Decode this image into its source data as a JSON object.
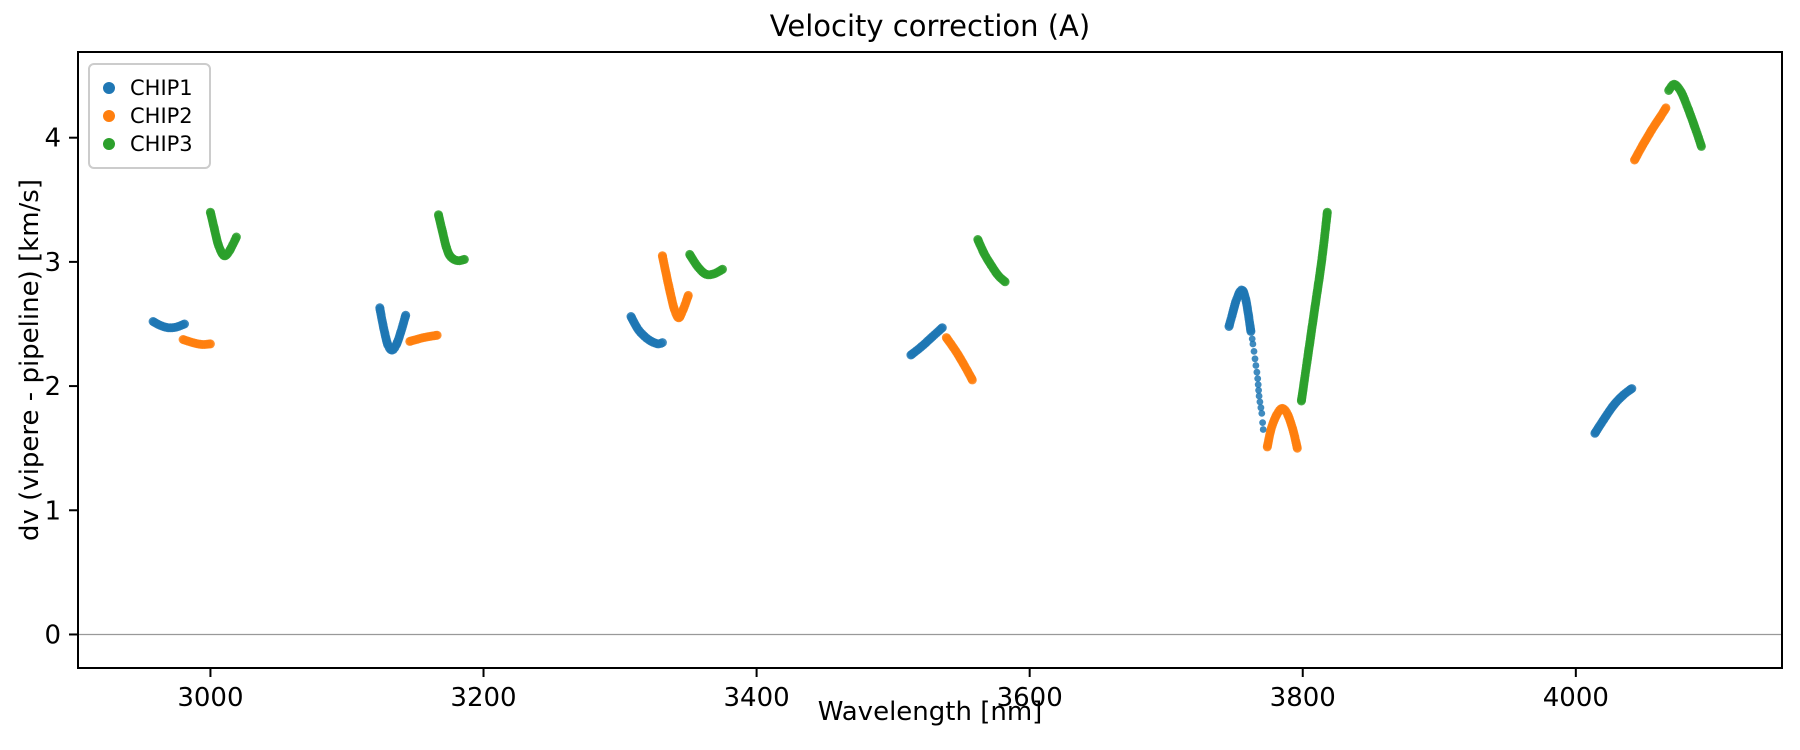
{
  "chart_data": {
    "type": "scatter",
    "title": "Velocity correction (A)",
    "xlabel": "Wavelength [nm]",
    "ylabel": "dv (vipere - pipeline) [km/s]",
    "xlim": [
      2903,
      4151
    ],
    "ylim": [
      -0.27,
      4.69
    ],
    "xticks": [
      3000,
      3200,
      3400,
      3600,
      3800,
      4000
    ],
    "yticks": [
      0,
      1,
      2,
      3,
      4
    ],
    "grid": false,
    "zero_line": {
      "y": 0,
      "color": "#999999"
    },
    "legend": {
      "position": "upper left",
      "entries": [
        "CHIP1",
        "CHIP2",
        "CHIP3"
      ]
    },
    "series": [
      {
        "name": "CHIP1",
        "color": "#1f77b4",
        "segments": [
          {
            "points": [
              [
                2958,
                2.52
              ],
              [
                2963,
                2.49
              ],
              [
                2969,
                2.47
              ],
              [
                2975,
                2.475
              ],
              [
                2981,
                2.5
              ]
            ]
          },
          {
            "points": [
              [
                3124,
                2.63
              ],
              [
                3127,
                2.46
              ],
              [
                3130,
                2.33
              ],
              [
                3133,
                2.29
              ],
              [
                3136,
                2.33
              ],
              [
                3139,
                2.42
              ],
              [
                3143,
                2.57
              ]
            ]
          },
          {
            "points": [
              [
                3308,
                2.56
              ],
              [
                3313,
                2.46
              ],
              [
                3318,
                2.4
              ],
              [
                3323,
                2.36
              ],
              [
                3328,
                2.34
              ],
              [
                3331,
                2.35
              ]
            ]
          },
          {
            "points": [
              [
                3513,
                2.25
              ],
              [
                3521,
                2.32
              ],
              [
                3529,
                2.4
              ],
              [
                3536,
                2.47
              ]
            ]
          },
          {
            "points": [
              [
                3746,
                2.48
              ],
              [
                3748,
                2.56
              ],
              [
                3751,
                2.68
              ],
              [
                3754,
                2.76
              ],
              [
                3756,
                2.77
              ],
              [
                3758,
                2.71
              ],
              [
                3760,
                2.59
              ],
              [
                3762,
                2.44
              ]
            ]
          },
          {
            "points": [
              [
                3763,
                2.38
              ],
              [
                3765,
                2.22
              ],
              [
                3767,
                2.06
              ],
              [
                3768,
                1.92
              ],
              [
                3770,
                1.78
              ],
              [
                3771,
                1.65
              ]
            ],
            "sparse": true
          },
          {
            "points": [
              [
                4014,
                1.62
              ],
              [
                4021,
                1.74
              ],
              [
                4028,
                1.85
              ],
              [
                4035,
                1.93
              ],
              [
                4041,
                1.98
              ]
            ]
          }
        ]
      },
      {
        "name": "CHIP2",
        "color": "#ff7f0e",
        "segments": [
          {
            "points": [
              [
                2980,
                2.375
              ],
              [
                2987,
                2.35
              ],
              [
                2994,
                2.335
              ],
              [
                3000,
                2.34
              ]
            ]
          },
          {
            "points": [
              [
                3146,
                2.36
              ],
              [
                3156,
                2.39
              ],
              [
                3166,
                2.41
              ]
            ]
          },
          {
            "points": [
              [
                3331,
                3.05
              ],
              [
                3334,
                2.89
              ],
              [
                3337,
                2.74
              ],
              [
                3340,
                2.61
              ],
              [
                3343,
                2.55
              ],
              [
                3346,
                2.61
              ],
              [
                3350,
                2.73
              ]
            ]
          },
          {
            "points": [
              [
                3539,
                2.39
              ],
              [
                3546,
                2.28
              ],
              [
                3552,
                2.17
              ],
              [
                3558,
                2.05
              ]
            ]
          },
          {
            "points": [
              [
                3774,
                1.51
              ],
              [
                3777,
                1.66
              ],
              [
                3781,
                1.77
              ],
              [
                3785,
                1.82
              ],
              [
                3789,
                1.77
              ],
              [
                3793,
                1.64
              ],
              [
                3796,
                1.5
              ]
            ]
          },
          {
            "points": [
              [
                4043,
                3.82
              ],
              [
                4049,
                3.94
              ],
              [
                4056,
                4.07
              ],
              [
                4062,
                4.17
              ],
              [
                4066,
                4.24
              ]
            ]
          }
        ]
      },
      {
        "name": "CHIP3",
        "color": "#2ca02c",
        "segments": [
          {
            "points": [
              [
                3000,
                3.4
              ],
              [
                3003,
                3.26
              ],
              [
                3006,
                3.13
              ],
              [
                3010,
                3.05
              ],
              [
                3014,
                3.09
              ],
              [
                3019,
                3.2
              ]
            ]
          },
          {
            "points": [
              [
                3167,
                3.38
              ],
              [
                3170,
                3.24
              ],
              [
                3173,
                3.11
              ],
              [
                3176,
                3.04
              ],
              [
                3181,
                3.01
              ],
              [
                3186,
                3.02
              ]
            ]
          },
          {
            "points": [
              [
                3351,
                3.06
              ],
              [
                3357,
                2.96
              ],
              [
                3363,
                2.9
              ],
              [
                3369,
                2.905
              ],
              [
                3375,
                2.94
              ]
            ]
          },
          {
            "points": [
              [
                3562,
                3.18
              ],
              [
                3567,
                3.06
              ],
              [
                3572,
                2.97
              ],
              [
                3577,
                2.89
              ],
              [
                3582,
                2.84
              ]
            ]
          },
          {
            "points": [
              [
                3799,
                1.88
              ],
              [
                3804,
                2.26
              ],
              [
                3809,
                2.64
              ],
              [
                3814,
                3.02
              ],
              [
                3818,
                3.4
              ]
            ]
          },
          {
            "points": [
              [
                4068,
                4.38
              ],
              [
                4072,
                4.43
              ],
              [
                4077,
                4.37
              ],
              [
                4082,
                4.24
              ],
              [
                4087,
                4.09
              ],
              [
                4092,
                3.93
              ]
            ]
          }
        ]
      }
    ]
  }
}
